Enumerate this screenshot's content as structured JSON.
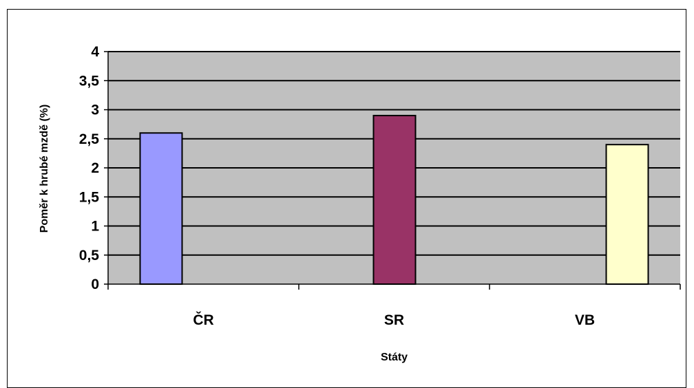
{
  "chart_data": {
    "type": "bar",
    "title": "",
    "xlabel": "Státy",
    "ylabel": "Poměr k hrubé mzdě  (%)",
    "categories": [
      "ČR",
      "SR",
      "VB"
    ],
    "values": [
      2.6,
      2.9,
      2.4
    ],
    "bar_colors": [
      "#9999FF",
      "#993366",
      "#FFFFCC"
    ],
    "ylim": [
      0,
      4
    ],
    "yticks": [
      "0",
      "0,5",
      "1",
      "1,5",
      "2",
      "2,5",
      "3",
      "3,5",
      "4"
    ],
    "grid": true,
    "plot_background": "#C0C0C0",
    "legend": "none"
  }
}
